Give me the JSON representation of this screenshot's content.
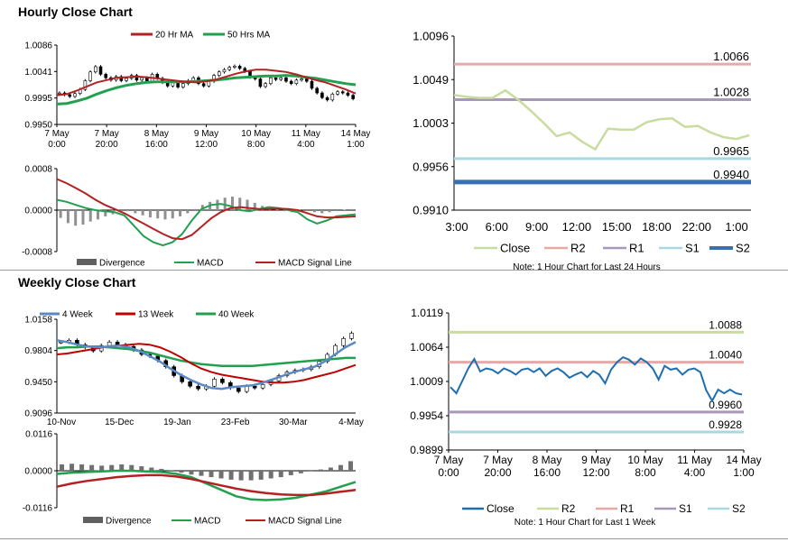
{
  "sections": {
    "hourly_title": "Hourly Close Chart",
    "weekly_title": "Weekly Close Chart"
  },
  "colors": {
    "ma20": "#b22222",
    "ma50": "#22a050",
    "candle": "#000000",
    "macd": "#22a050",
    "signal": "#b22222",
    "divergence": "#909090",
    "close_hourly": "#c8dca0",
    "r2": "#e8a8a8",
    "r1": "#a898b8",
    "s1": "#a8d8e0",
    "s2": "#3a70b0",
    "w4": "#5a8ac6",
    "w13": "#c00000",
    "w40": "#22a050",
    "close_weekly": "#1f6fb0",
    "r2_weekly": "#c8dca0",
    "r1_weekly": "#e8a8a8",
    "s1_weekly": "#a898b8",
    "s2_weekly": "#a8d8e0"
  },
  "chart_data": [
    {
      "id": "hourly_price",
      "type": "line",
      "title": "",
      "legend": [
        "20 Hr MA",
        "50 Hrs MA"
      ],
      "legend_position": "top",
      "y_ticks": [
        "1.0086",
        "1.0041",
        "0.9995",
        "0.9950"
      ],
      "ylim": [
        0.995,
        1.0086
      ],
      "x_tick_labels": [
        [
          "7 May",
          "0:00"
        ],
        [
          "7 May",
          "20:00"
        ],
        [
          "8 May",
          "16:00"
        ],
        [
          "9 May",
          "12:00"
        ],
        [
          "10 May",
          "8:00"
        ],
        [
          "11 May",
          "4:00"
        ],
        [
          "14 May",
          "1:00"
        ]
      ],
      "candles": [
        1.0004,
        1.0001,
        0.9998,
        1.0003,
        1.001,
        1.0025,
        1.004,
        1.0049,
        1.0036,
        1.003,
        1.0026,
        1.0032,
        1.0025,
        1.0029,
        1.0034,
        1.0026,
        1.003,
        1.0024,
        1.0036,
        1.0029,
        1.0022,
        1.0016,
        1.0022,
        1.0014,
        1.002,
        1.0025,
        1.003,
        1.002,
        1.0016,
        1.0024,
        1.0034,
        1.004,
        1.0044,
        1.0048,
        1.005,
        1.0046,
        1.0041,
        1.0031,
        1.0028,
        1.0015,
        1.002,
        1.003,
        1.0027,
        1.003,
        1.0024,
        1.002,
        1.0026,
        1.0028,
        1.0024,
        1.0012,
        1.0004,
        0.9996,
        0.9992,
        1.0002,
        1.0006,
        1.0004,
        1.0,
        0.9994
      ],
      "series": [
        {
          "name": "20 Hr MA",
          "values": [
            1.0,
            1.0002,
            1.0008,
            1.0015,
            1.0022,
            1.0026,
            1.003,
            1.0031,
            1.0032,
            1.0031,
            1.0029,
            1.0027,
            1.0025,
            1.0023,
            1.0022,
            1.0024,
            1.0027,
            1.0032,
            1.0037,
            1.0041,
            1.0044,
            1.0044,
            1.0042,
            1.004,
            1.0036,
            1.0031,
            1.0026,
            1.0022,
            1.0016,
            1.001,
            1.0003
          ]
        },
        {
          "name": "50 Hrs MA",
          "values": [
            0.9985,
            0.9986,
            0.999,
            0.9995,
            1.0002,
            1.0008,
            1.0013,
            1.0017,
            1.002,
            1.0022,
            1.0023,
            1.0023,
            1.0023,
            1.0023,
            1.0024,
            1.0025,
            1.0026,
            1.0028,
            1.003,
            1.0031,
            1.0032,
            1.0033,
            1.0033,
            1.0034,
            1.0033,
            1.0031,
            1.0029,
            1.0026,
            1.0023,
            1.002,
            1.0018
          ]
        }
      ]
    },
    {
      "id": "hourly_macd",
      "type": "bar",
      "y_ticks": [
        "0.0008",
        "0.0000",
        "-0.0008"
      ],
      "ylim": [
        -0.0008,
        0.0008
      ],
      "legend": [
        "Divergence",
        "MACD",
        "MACD Signal Line"
      ],
      "legend_position": "bottom",
      "divergence": [
        -0.00015,
        -0.00025,
        -0.0003,
        -0.00028,
        -0.00022,
        -0.00018,
        -0.00012,
        -8e-05,
        -4e-05,
        -2e-05,
        -6e-05,
        -0.0001,
        -0.00014,
        -0.00016,
        -0.00018,
        -0.00016,
        -0.00012,
        -6e-05,
        2e-05,
        0.0001,
        0.00016,
        0.0002,
        0.00024,
        0.00026,
        0.00024,
        0.0002,
        0.00014,
        8e-05,
        4e-05,
        1e-05,
        -2e-05,
        -4e-05,
        -3e-05,
        -2e-05,
        -4e-05,
        -6e-05,
        -4e-05,
        -2e-05,
        1e-05,
        2e-05
      ],
      "series": [
        {
          "name": "MACD",
          "values": [
            0.0002,
            0.00016,
            0.0001,
            4e-05,
            0.0,
            -2e-05,
            -4e-05,
            -0.0001,
            -0.0003,
            -0.0005,
            -0.00062,
            -0.00068,
            -0.00062,
            -0.00046,
            -0.0002,
            2e-05,
            0.0001,
            0.00012,
            8e-05,
            0.0,
            -2e-05,
            2e-05,
            6e-05,
            4e-05,
            0.0,
            -4e-05,
            -0.00018,
            -0.00026,
            -0.0002,
            -0.00012,
            -0.0001,
            -8e-05
          ]
        },
        {
          "name": "MACD Signal Line",
          "values": [
            0.0006,
            0.00052,
            0.00042,
            0.00032,
            0.0002,
            0.0001,
            2e-05,
            -6e-05,
            -0.00016,
            -0.00026,
            -0.00036,
            -0.00046,
            -0.00054,
            -0.00056,
            -0.00048,
            -0.00032,
            -0.00016,
            -4e-05,
            4e-05,
            6e-05,
            4e-05,
            2e-05,
            2e-05,
            3e-05,
            2e-05,
            0.0,
            -6e-05,
            -0.00012,
            -0.00014,
            -0.00014,
            -0.00013,
            -0.00012
          ]
        }
      ]
    },
    {
      "id": "hourly_24h",
      "type": "line",
      "y_ticks": [
        "1.0096",
        "1.0049",
        "1.0003",
        "0.9956",
        "0.9910"
      ],
      "ylim": [
        0.991,
        1.0096
      ],
      "x_ticks": [
        "3:00",
        "6:00",
        "9:00",
        "12:00",
        "15:00",
        "18:00",
        "22:00",
        "1:00"
      ],
      "levels": [
        {
          "name": "R2",
          "value": 1.0066,
          "label": "1.0066"
        },
        {
          "name": "R1",
          "value": 1.0028,
          "label": "1.0028"
        },
        {
          "name": "S1",
          "value": 0.9965,
          "label": "0.9965"
        },
        {
          "name": "S2",
          "value": 0.994,
          "label": "0.9940"
        }
      ],
      "series": [
        {
          "name": "Close",
          "values": [
            1.0033,
            1.0031,
            1.003,
            1.003,
            1.0038,
            1.0028,
            1.0016,
            1.0003,
            0.9989,
            0.9993,
            0.9983,
            0.9975,
            0.9997,
            0.9996,
            0.9996,
            1.0004,
            1.0007,
            1.0008,
            0.9999,
            1.0,
            0.9993,
            0.9988,
            0.9986,
            0.999
          ]
        }
      ],
      "legend": [
        "Close",
        "R2",
        "R1",
        "S1",
        "S2"
      ],
      "legend_position": "bottom",
      "note": "Note: 1 Hour Chart for Last 24 Hours"
    },
    {
      "id": "weekly_price",
      "type": "line",
      "legend": [
        "4 Week",
        "13 Week",
        "40 Week"
      ],
      "legend_position": "top",
      "y_ticks": [
        "1.0158",
        "0.9804",
        "0.9450",
        "0.9096"
      ],
      "ylim": [
        0.9096,
        1.0158
      ],
      "x_ticks": [
        "10-Nov",
        "15-Dec",
        "19-Jan",
        "23-Feb",
        "30-Mar",
        "4-May"
      ],
      "candles": [
        0.99,
        0.992,
        0.987,
        0.984,
        0.98,
        0.986,
        0.99,
        0.987,
        0.985,
        0.981,
        0.976,
        0.974,
        0.969,
        0.962,
        0.952,
        0.945,
        0.94,
        0.937,
        0.94,
        0.948,
        0.944,
        0.938,
        0.934,
        0.94,
        0.938,
        0.942,
        0.946,
        0.952,
        0.956,
        0.958,
        0.959,
        0.962,
        0.968,
        0.976,
        0.986,
        0.994,
        1.0
      ],
      "series": [
        {
          "name": "4 Week",
          "values": [
            0.992,
            0.99,
            0.987,
            0.985,
            0.984,
            0.985,
            0.986,
            0.984,
            0.98,
            0.974,
            0.968,
            0.96,
            0.953,
            0.947,
            0.942,
            0.938,
            0.937,
            0.939,
            0.94,
            0.941,
            0.944,
            0.948,
            0.952,
            0.956,
            0.959,
            0.962,
            0.968,
            0.976,
            0.984,
            0.99
          ]
        },
        {
          "name": "13 Week",
          "values": [
            0.976,
            0.977,
            0.979,
            0.981,
            0.983,
            0.985,
            0.986,
            0.987,
            0.988,
            0.987,
            0.984,
            0.979,
            0.973,
            0.966,
            0.96,
            0.956,
            0.953,
            0.951,
            0.949,
            0.947,
            0.945,
            0.944,
            0.944,
            0.945,
            0.947,
            0.95,
            0.953,
            0.956,
            0.96,
            0.964
          ]
        },
        {
          "name": "40 Week",
          "values": [
            0.983,
            0.984,
            0.984,
            0.985,
            0.985,
            0.984,
            0.983,
            0.982,
            0.98,
            0.978,
            0.975,
            0.972,
            0.969,
            0.967,
            0.965,
            0.964,
            0.963,
            0.963,
            0.963,
            0.963,
            0.964,
            0.965,
            0.966,
            0.967,
            0.968,
            0.969,
            0.97,
            0.971,
            0.972,
            0.972
          ]
        }
      ]
    },
    {
      "id": "weekly_macd",
      "type": "bar",
      "y_ticks": [
        "0.0116",
        "0.0000",
        "-0.0116"
      ],
      "ylim": [
        -0.0116,
        0.0116
      ],
      "legend": [
        "Divergence",
        "MACD",
        "MACD Signal Line"
      ],
      "legend_position": "bottom",
      "divergence": [
        0.002,
        0.0022,
        0.002,
        0.0018,
        0.0016,
        0.0018,
        0.002,
        0.0018,
        0.0014,
        0.001,
        0.0006,
        0.0002,
        -0.0006,
        -0.0012,
        -0.0016,
        -0.002,
        -0.0024,
        -0.0028,
        -0.003,
        -0.003,
        -0.0028,
        -0.0024,
        -0.002,
        -0.0014,
        -0.0008,
        -0.0002,
        0.0004,
        0.001,
        0.0018,
        0.003
      ],
      "series": [
        {
          "name": "MACD",
          "values": [
            -0.001,
            -0.0006,
            -0.0004,
            -0.0002,
            0.0,
            0.0,
            -0.0002,
            -0.0004,
            -0.001,
            -0.002,
            -0.004,
            -0.006,
            -0.008,
            -0.009,
            -0.0092,
            -0.009,
            -0.0085,
            -0.0075,
            -0.0065,
            -0.005,
            -0.0035
          ]
        },
        {
          "name": "MACD Signal Line",
          "values": [
            -0.005,
            -0.004,
            -0.0032,
            -0.0026,
            -0.002,
            -0.0016,
            -0.0014,
            -0.0014,
            -0.0018,
            -0.0026,
            -0.0036,
            -0.0046,
            -0.0056,
            -0.0064,
            -0.007,
            -0.0074,
            -0.0076,
            -0.0076,
            -0.0072,
            -0.0066,
            -0.006
          ]
        }
      ]
    },
    {
      "id": "weekly_1w",
      "type": "line",
      "y_ticks": [
        "1.0119",
        "1.0064",
        "1.0009",
        "0.9954",
        "0.9899"
      ],
      "ylim": [
        0.9899,
        1.0119
      ],
      "x_tick_labels": [
        [
          "7 May",
          "0:00"
        ],
        [
          "7 May",
          "20:00"
        ],
        [
          "8 May",
          "16:00"
        ],
        [
          "9 May",
          "12:00"
        ],
        [
          "10 May",
          "8:00"
        ],
        [
          "11 May",
          "4:00"
        ],
        [
          "14 May",
          "1:00"
        ]
      ],
      "levels": [
        {
          "name": "R2",
          "value": 1.0088,
          "label": "1.0088"
        },
        {
          "name": "R1",
          "value": 1.004,
          "label": "1.0040"
        },
        {
          "name": "S1",
          "value": 0.996,
          "label": "0.9960"
        },
        {
          "name": "S2",
          "value": 0.9928,
          "label": "0.9928"
        }
      ],
      "series": [
        {
          "name": "Close",
          "values": [
            1.0,
            0.999,
            1.001,
            1.003,
            1.0045,
            1.0025,
            1.003,
            1.0028,
            1.0022,
            1.003,
            1.0026,
            1.002,
            1.0028,
            1.003,
            1.0024,
            1.003,
            1.0018,
            1.0026,
            1.003,
            1.0024,
            1.0015,
            1.002,
            1.0024,
            1.0016,
            1.0026,
            1.002,
            1.0006,
            1.0028,
            1.004,
            1.0048,
            1.0044,
            1.0036,
            1.0046,
            1.004,
            1.003,
            1.0012,
            1.0034,
            1.0028,
            1.003,
            1.002,
            1.0028,
            1.003,
            1.0024,
            0.9995,
            0.9978,
            0.9996,
            0.999,
            0.9996,
            0.999,
            0.9988
          ]
        }
      ],
      "legend": [
        "Close",
        "R2",
        "R1",
        "S1",
        "S2"
      ],
      "legend_position": "bottom",
      "note": "Note: 1 Hour Chart for Last 1 Week"
    }
  ]
}
